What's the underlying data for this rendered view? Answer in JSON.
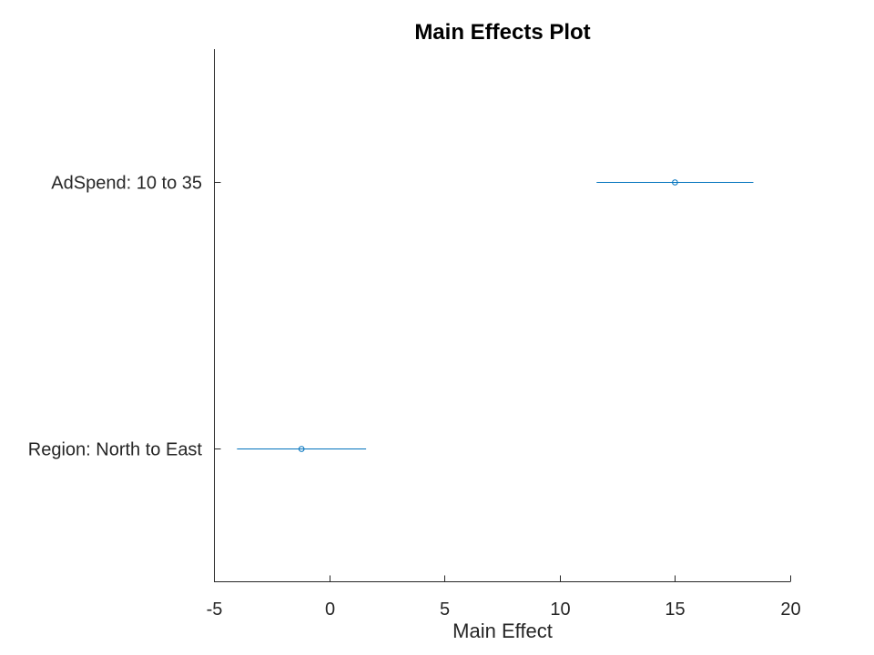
{
  "chart_data": {
    "type": "scatter",
    "title": "Main Effects Plot",
    "xlabel": "Main Effect",
    "ylabel": "",
    "xlim": [
      -5,
      20
    ],
    "xticks": [
      -5,
      0,
      5,
      10,
      15,
      20
    ],
    "grid": false,
    "categories": [
      "AdSpend: 10 to 35",
      "Region: North to East"
    ],
    "series": [
      {
        "color": "#0072BD",
        "points": [
          {
            "label": "AdSpend: 10 to 35",
            "effect": 15.0,
            "lower": 11.6,
            "upper": 18.4
          },
          {
            "label": "Region: North to East",
            "effect": -1.2,
            "lower": -4.0,
            "upper": 1.6
          }
        ]
      }
    ]
  }
}
